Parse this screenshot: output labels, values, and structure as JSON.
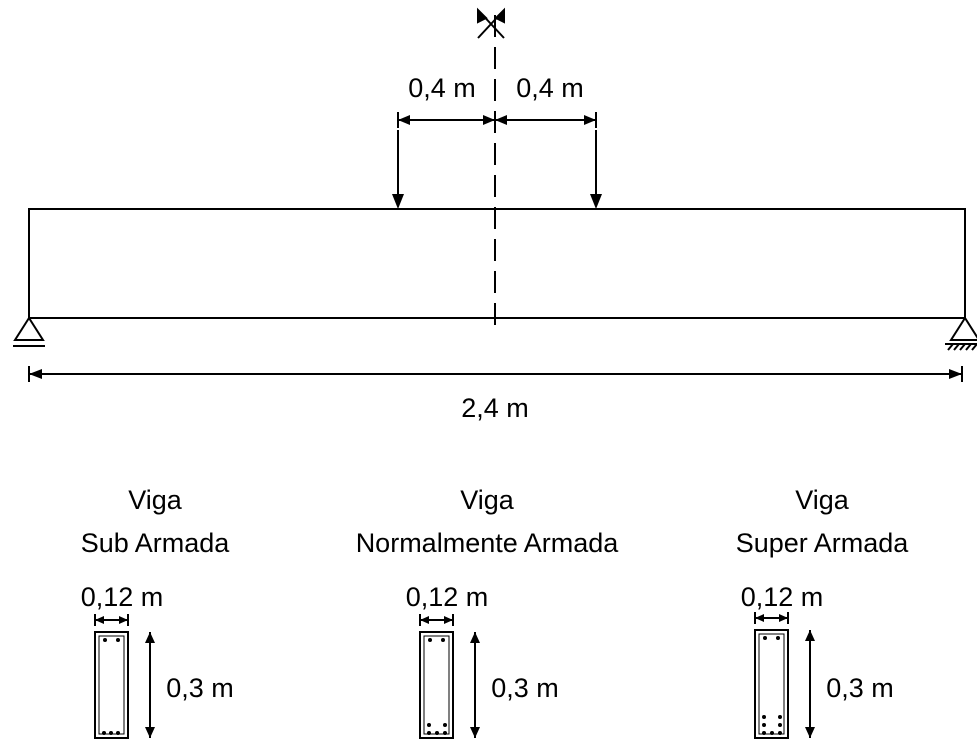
{
  "beam": {
    "left_offset": "0,4 m",
    "right_offset": "0,4 m",
    "span": "2,4 m"
  },
  "sections": [
    {
      "title": "Viga",
      "subtitle": "Sub Armada",
      "width": "0,12 m",
      "height": "0,3 m"
    },
    {
      "title": "Viga",
      "subtitle": "Normalmente Armada",
      "width": "0,12 m",
      "height": "0,3 m"
    },
    {
      "title": "Viga",
      "subtitle": "Super Armada",
      "width": "0,12 m",
      "height": "0,3 m"
    }
  ]
}
